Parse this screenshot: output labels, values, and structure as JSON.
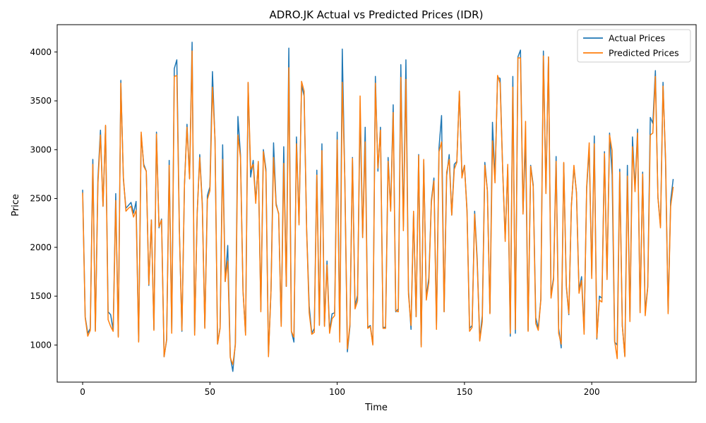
{
  "chart_data": {
    "type": "line",
    "title": "ADRO.JK Actual vs Predicted Prices (IDR)",
    "xlabel": "Time",
    "ylabel": "Price",
    "xlim": [
      -10,
      241
    ],
    "ylim": [
      620,
      4280
    ],
    "x_ticks": [
      0,
      50,
      100,
      150,
      200
    ],
    "y_ticks": [
      1000,
      1500,
      2000,
      2500,
      3000,
      3500,
      4000
    ],
    "grid": false,
    "legend_position": "top-right",
    "series": [
      {
        "name": "Actual Prices",
        "color": "#1f77b4",
        "values": [
          2590,
          1290,
          1120,
          1170,
          2900,
          1150,
          2700,
          3200,
          2420,
          3240,
          1340,
          1310,
          1150,
          2550,
          1090,
          3710,
          2700,
          2400,
          2430,
          2460,
          2350,
          2470,
          1040,
          3150,
          2850,
          2780,
          1610,
          2280,
          1160,
          3180,
          2200,
          2290,
          880,
          1050,
          2890,
          1130,
          3830,
          3920,
          2180,
          1140,
          2640,
          3260,
          2710,
          4100,
          1110,
          2350,
          2950,
          2450,
          1180,
          2530,
          2620,
          3800,
          3090,
          1010,
          1180,
          3050,
          1650,
          2020,
          880,
          730,
          1020,
          3340,
          2950,
          1550,
          1120,
          3680,
          2720,
          2890,
          2480,
          2860,
          1360,
          3000,
          2800,
          900,
          1560,
          3070,
          2450,
          2340,
          1200,
          3030,
          1600,
          4040,
          1140,
          1030,
          3130,
          2250,
          3660,
          3550,
          2180,
          1400,
          1120,
          1170,
          2790,
          1210,
          3060,
          1200,
          1860,
          1150,
          1320,
          1330,
          3180,
          1060,
          4030,
          2680,
          930,
          1190,
          2920,
          1400,
          1510,
          3400,
          2100,
          3230,
          1180,
          1200,
          1010,
          3750,
          2780,
          3230,
          1180,
          1180,
          2920,
          2390,
          3460,
          1340,
          1370,
          3870,
          2210,
          3920,
          1560,
          1160,
          2350,
          1290,
          2950,
          1000,
          2890,
          1480,
          1690,
          2480,
          2710,
          1200,
          3020,
          3350,
          1340,
          2730,
          2950,
          2330,
          2850,
          2880,
          3590,
          2740,
          2840,
          2380,
          1170,
          1200,
          2370,
          1880,
          1050,
          1300,
          2870,
          2580,
          1330,
          3280,
          2700,
          3740,
          3730,
          2800,
          2090,
          2820,
          1090,
          3750,
          1120,
          3950,
          4020,
          2360,
          3100,
          1150,
          2840,
          2640,
          1280,
          1170,
          1470,
          4010,
          2590,
          3950,
          1510,
          1690,
          2930,
          1170,
          970,
          2860,
          1600,
          1310,
          2430,
          2820,
          2560,
          1560,
          1700,
          1150,
          2600,
          3020,
          1710,
          3140,
          1060,
          1500,
          1480,
          2980,
          1680,
          3170,
          2740,
          1030,
          1000,
          2800,
          1200,
          890,
          2840,
          1270,
          3130,
          2600,
          3210,
          1340,
          2770,
          1330,
          1600,
          3330,
          3270,
          3810,
          2510,
          2220,
          3690,
          2870,
          1340,
          2480,
          2700
        ]
      },
      {
        "name": "Predicted Prices",
        "color": "#ff7f0e",
        "values": [
          2560,
          1280,
          1090,
          1150,
          2850,
          1140,
          2650,
          3150,
          2420,
          3250,
          1260,
          1190,
          1140,
          2480,
          1080,
          3680,
          2720,
          2370,
          2400,
          2420,
          2310,
          2380,
          1030,
          3180,
          2830,
          2780,
          1620,
          2280,
          1150,
          3160,
          2210,
          2280,
          880,
          1060,
          2840,
          1120,
          3750,
          3760,
          2170,
          1150,
          2640,
          3230,
          2700,
          4010,
          1100,
          2350,
          2920,
          2430,
          1170,
          2490,
          2580,
          3640,
          3110,
          1010,
          1170,
          2900,
          1650,
          1860,
          870,
          800,
          1000,
          3150,
          2920,
          1560,
          1100,
          3690,
          2800,
          2850,
          2450,
          2880,
          1340,
          2980,
          2770,
          880,
          1560,
          2920,
          2430,
          2350,
          1190,
          2860,
          1600,
          3840,
          1140,
          1080,
          3060,
          2230,
          3700,
          3600,
          2170,
          1330,
          1110,
          1130,
          2740,
          1200,
          2990,
          1190,
          1820,
          1120,
          1270,
          1300,
          3100,
          1030,
          3690,
          2700,
          960,
          1210,
          2910,
          1370,
          1450,
          3550,
          2100,
          3080,
          1170,
          1190,
          1000,
          3680,
          2810,
          3200,
          1170,
          1170,
          2880,
          2370,
          3380,
          1350,
          1340,
          3740,
          2170,
          3720,
          1520,
          1200,
          2370,
          1290,
          2940,
          980,
          2900,
          1460,
          1640,
          2460,
          2680,
          1160,
          2980,
          3080,
          1340,
          2770,
          2900,
          2330,
          2800,
          2870,
          3600,
          2710,
          2840,
          2360,
          1140,
          1180,
          2340,
          1840,
          1040,
          1240,
          2840,
          2580,
          1320,
          3090,
          2660,
          3760,
          3680,
          2800,
          2060,
          2850,
          1120,
          3640,
          1160,
          3940,
          3940,
          2340,
          3290,
          1140,
          2830,
          2620,
          1220,
          1150,
          1460,
          3960,
          2550,
          3950,
          1480,
          1670,
          2880,
          1120,
          1010,
          2870,
          1610,
          1320,
          2420,
          2840,
          2560,
          1530,
          1660,
          1110,
          2620,
          3070,
          1680,
          3060,
          1070,
          1460,
          1440,
          2960,
          1670,
          3150,
          2990,
          1040,
          860,
          2770,
          1200,
          880,
          2730,
          1240,
          3030,
          2570,
          3170,
          1330,
          2750,
          1300,
          1590,
          3150,
          3170,
          3750,
          2510,
          2200,
          3650,
          2920,
          1320,
          2420,
          2620
        ]
      }
    ]
  }
}
